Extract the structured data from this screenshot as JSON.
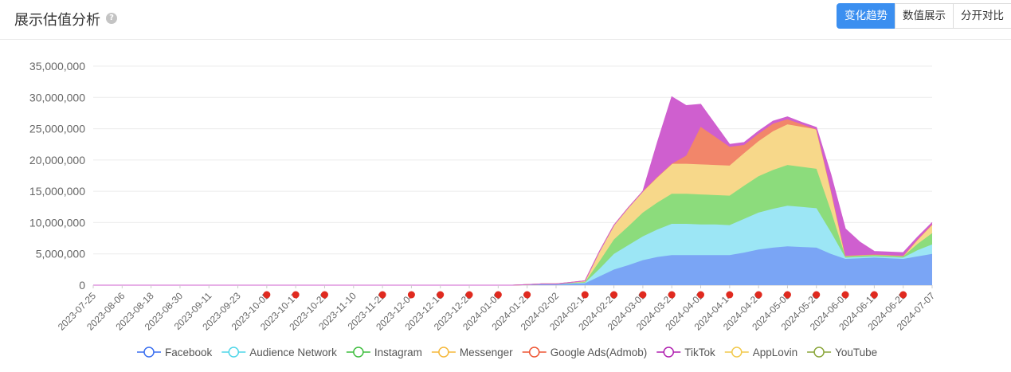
{
  "header": {
    "title": "展示估值分析",
    "help_icon": "?",
    "buttons": [
      "变化趋势",
      "数值展示",
      "分开对比"
    ],
    "active_button": 0
  },
  "colors": {
    "accent": "#3b8ff0",
    "marker": "#e02a1f",
    "series": [
      "#3a6ff0",
      "#4fd6e8",
      "#3fbe3f",
      "#f5b83a",
      "#ee5533",
      "#b020b0",
      "#f2c94c",
      "#8aa63a"
    ],
    "fills": [
      "#7aa5f5",
      "#9ce6f5",
      "#8cdc7c",
      "#f7d88a",
      "#f2866a",
      "#cf5fcf",
      "#f7d88a",
      "#b6c98a"
    ]
  },
  "chart_data": {
    "type": "area",
    "stacked": true,
    "title": "展示估值分析",
    "xlabel": "",
    "ylabel": "",
    "ylim": [
      0,
      35000000
    ],
    "yticks": [
      0,
      5000000,
      10000000,
      15000000,
      20000000,
      25000000,
      30000000,
      35000000
    ],
    "ytick_labels": [
      "0",
      "5,000,000",
      "10,000,000",
      "15,000,000",
      "20,000,000",
      "25,000,000",
      "30,000,000",
      "35,000,000"
    ],
    "grid": true,
    "legend_position": "bottom",
    "x": [
      "2023-07-25",
      "2023-07-31",
      "2023-08-06",
      "2023-08-12",
      "2023-08-18",
      "2023-08-24",
      "2023-08-30",
      "2023-09-05",
      "2023-09-11",
      "2023-09-17",
      "2023-09-23",
      "2023-09-29",
      "2023-10-05",
      "2023-10-11",
      "2023-10-17",
      "2023-10-23",
      "2023-10-29",
      "2023-11-04",
      "2023-11-10",
      "2023-11-16",
      "2023-11-22",
      "2023-11-28",
      "2023-12-04",
      "2023-12-10",
      "2023-12-16",
      "2023-12-22",
      "2023-12-28",
      "2024-01-03",
      "2024-01-09",
      "2024-01-15",
      "2024-01-21",
      "2024-01-27",
      "2024-02-02",
      "2024-02-08",
      "2024-02-14",
      "2024-02-20",
      "2024-02-26",
      "2024-03-03",
      "2024-03-09",
      "2024-03-15",
      "2024-03-21",
      "2024-03-27",
      "2024-04-02",
      "2024-04-08",
      "2024-04-14",
      "2024-04-20",
      "2024-04-26",
      "2024-05-02",
      "2024-05-08",
      "2024-05-14",
      "2024-05-20",
      "2024-05-26",
      "2024-06-01",
      "2024-06-07",
      "2024-06-13",
      "2024-06-19",
      "2024-06-25",
      "2024-07-01",
      "2024-07-07"
    ],
    "x_tick_labels": [
      "2023-07-25",
      "2023-08-06",
      "2023-08-18",
      "2023-08-30",
      "2023-09-11",
      "2023-09-23",
      "2023-10-05",
      "2023-10-17",
      "2023-10-29",
      "2023-11-10",
      "2023-11-22",
      "2023-12-04",
      "2023-12-16",
      "2023-12-28",
      "2024-01-09",
      "2024-01-21",
      "2024-02-02",
      "2024-02-14",
      "2024-02-26",
      "2024-03-09",
      "2024-03-21",
      "2024-04-02",
      "2024-04-14",
      "2024-04-26",
      "2024-05-08",
      "2024-05-20",
      "2024-06-01",
      "2024-06-13",
      "2024-06-25",
      "2024-07-07"
    ],
    "markers": [
      "2023-10-05",
      "2023-10-17",
      "2023-10-29",
      "2023-11-22",
      "2023-12-04",
      "2023-12-16",
      "2023-12-28",
      "2024-01-09",
      "2024-01-21",
      "2024-02-14",
      "2024-02-26",
      "2024-03-09",
      "2024-03-21",
      "2024-04-02",
      "2024-04-14",
      "2024-04-26",
      "2024-05-08",
      "2024-05-20",
      "2024-06-01",
      "2024-06-13",
      "2024-06-25"
    ],
    "series": [
      {
        "name": "Facebook",
        "values": [
          0,
          0,
          0,
          0,
          0,
          0,
          0,
          0,
          0,
          0,
          0,
          0,
          0,
          0,
          0,
          0,
          0,
          0,
          0,
          0,
          0,
          0,
          0,
          0,
          0,
          0,
          0,
          0,
          0,
          0,
          100000,
          200000,
          200000,
          250000,
          300000,
          1400000,
          2500000,
          3200000,
          4000000,
          4500000,
          4800000,
          4800000,
          4800000,
          4800000,
          4800000,
          5200000,
          5700000,
          6000000,
          6200000,
          6100000,
          6000000,
          5000000,
          4200000,
          4300000,
          4400000,
          4300000,
          4200000,
          4600000,
          5000000
        ]
      },
      {
        "name": "Audience Network",
        "values": [
          0,
          0,
          0,
          0,
          0,
          0,
          0,
          0,
          0,
          0,
          0,
          0,
          0,
          0,
          0,
          0,
          0,
          0,
          0,
          0,
          0,
          0,
          0,
          0,
          0,
          0,
          0,
          0,
          0,
          0,
          0,
          0,
          0,
          50000,
          100000,
          1200000,
          2500000,
          3200000,
          3800000,
          4400000,
          5000000,
          5000000,
          4900000,
          4900000,
          4800000,
          5400000,
          5900000,
          6200000,
          6500000,
          6400000,
          6300000,
          3500000,
          200000,
          200000,
          200000,
          200000,
          200000,
          1000000,
          1500000
        ]
      },
      {
        "name": "Instagram",
        "values": [
          0,
          0,
          0,
          0,
          0,
          0,
          0,
          0,
          0,
          0,
          0,
          0,
          0,
          0,
          0,
          0,
          0,
          0,
          0,
          0,
          0,
          0,
          0,
          0,
          0,
          0,
          0,
          0,
          0,
          0,
          0,
          0,
          0,
          50000,
          100000,
          1200000,
          2300000,
          3000000,
          3800000,
          4300000,
          4800000,
          4800000,
          4800000,
          4700000,
          4700000,
          5300000,
          5800000,
          6200000,
          6500000,
          6400000,
          6300000,
          3400000,
          200000,
          200000,
          200000,
          200000,
          200000,
          1000000,
          1800000
        ]
      },
      {
        "name": "Messenger",
        "values": [
          0,
          0,
          0,
          0,
          0,
          0,
          0,
          0,
          0,
          0,
          0,
          0,
          0,
          0,
          0,
          0,
          0,
          0,
          0,
          0,
          0,
          0,
          0,
          0,
          0,
          0,
          0,
          0,
          0,
          0,
          0,
          0,
          0,
          100000,
          200000,
          1600000,
          2300000,
          3000000,
          3400000,
          4100000,
          4800000,
          4800000,
          4800000,
          4800000,
          4800000,
          5200000,
          5600000,
          6200000,
          6500000,
          6400000,
          6300000,
          3300000,
          100000,
          100000,
          100000,
          100000,
          100000,
          700000,
          1400000
        ]
      },
      {
        "name": "Google Ads(Admob)",
        "values": [
          0,
          0,
          0,
          0,
          0,
          0,
          0,
          0,
          0,
          0,
          0,
          0,
          0,
          0,
          0,
          0,
          0,
          0,
          0,
          0,
          0,
          0,
          0,
          0,
          0,
          0,
          0,
          0,
          0,
          0,
          0,
          0,
          0,
          0,
          0,
          0,
          0,
          0,
          0,
          0,
          0,
          1300000,
          6000000,
          4500000,
          3000000,
          1300000,
          1200000,
          1200000,
          800000,
          400000,
          0,
          0,
          0,
          0,
          0,
          0,
          0,
          0,
          0
        ]
      },
      {
        "name": "TikTok",
        "values": [
          0,
          0,
          0,
          0,
          0,
          0,
          0,
          0,
          0,
          0,
          0,
          0,
          0,
          0,
          0,
          0,
          0,
          0,
          0,
          0,
          0,
          0,
          0,
          0,
          0,
          0,
          0,
          0,
          0,
          0,
          0,
          0,
          0,
          0,
          0,
          0,
          0,
          0,
          0,
          5500000,
          10700000,
          8000000,
          3600000,
          2000000,
          400000,
          400000,
          400000,
          400000,
          400000,
          300000,
          300000,
          2500000,
          4300000,
          2100000,
          500000,
          500000,
          500000,
          400000,
          300000
        ]
      },
      {
        "name": "AppLovin",
        "values": [
          0,
          0,
          0,
          0,
          0,
          0,
          0,
          0,
          0,
          0,
          0,
          0,
          0,
          0,
          0,
          0,
          0,
          0,
          0,
          0,
          0,
          0,
          0,
          0,
          0,
          0,
          0,
          0,
          0,
          0,
          0,
          0,
          0,
          0,
          0,
          0,
          0,
          0,
          0,
          0,
          0,
          0,
          0,
          0,
          0,
          0,
          0,
          0,
          0,
          0,
          0,
          0,
          0,
          0,
          0,
          0,
          0,
          0,
          0
        ]
      },
      {
        "name": "YouTube",
        "values": [
          0,
          0,
          0,
          0,
          0,
          0,
          0,
          0,
          0,
          0,
          0,
          0,
          0,
          0,
          0,
          0,
          0,
          0,
          0,
          0,
          0,
          0,
          0,
          0,
          0,
          0,
          0,
          0,
          0,
          0,
          0,
          0,
          0,
          0,
          0,
          0,
          0,
          0,
          0,
          0,
          0,
          0,
          0,
          0,
          0,
          0,
          0,
          0,
          0,
          0,
          0,
          0,
          0,
          0,
          0,
          0,
          0,
          0,
          0
        ]
      }
    ]
  }
}
